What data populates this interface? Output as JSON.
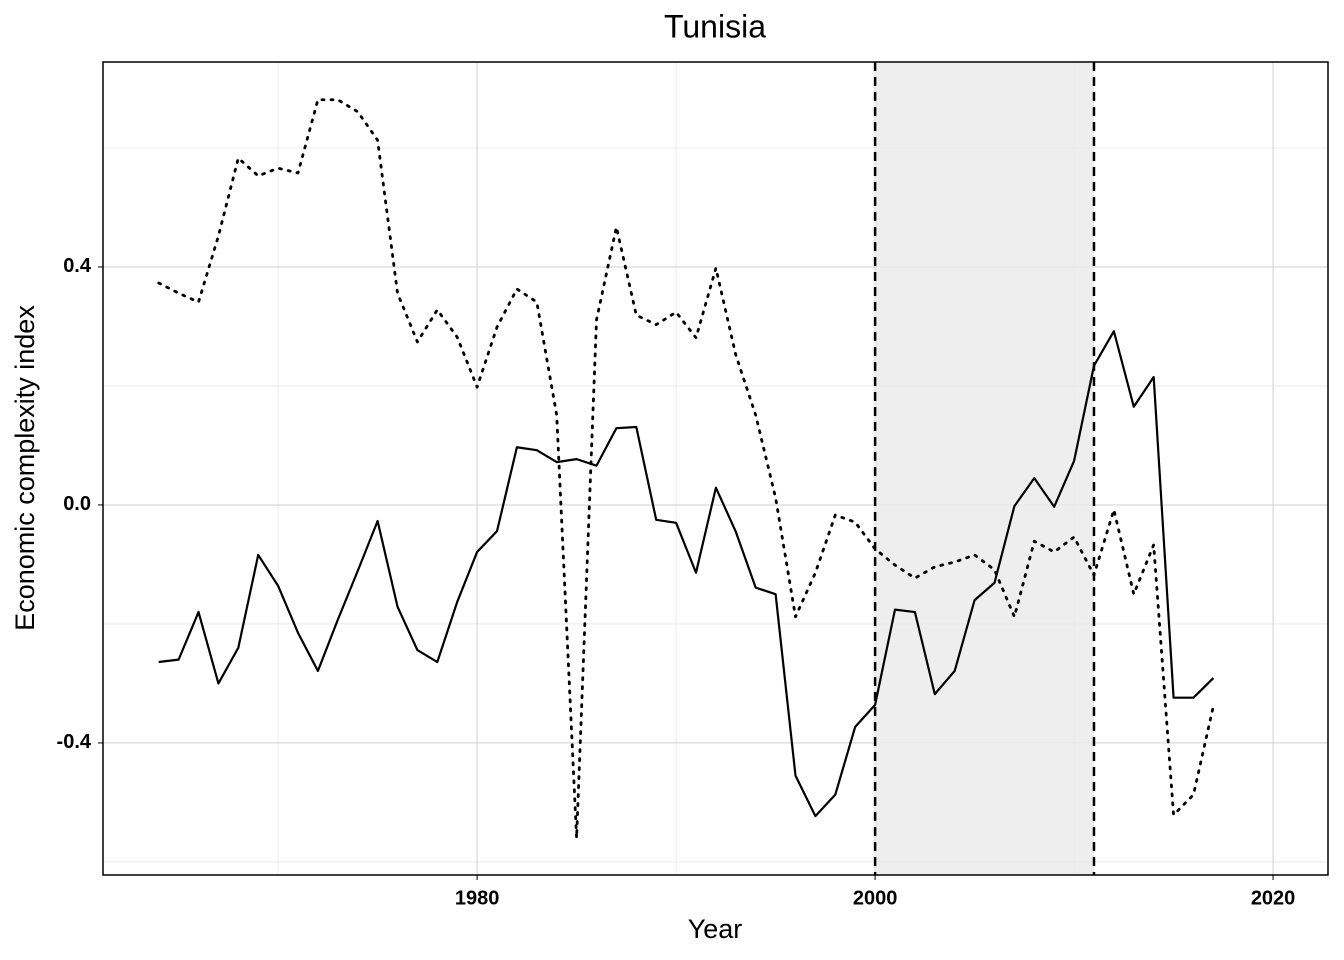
{
  "chart_data": {
    "type": "line",
    "title": "Tunisia",
    "x_label": "Year",
    "y_label": "Economic complexity index",
    "x": [
      1964,
      1965,
      1966,
      1967,
      1968,
      1969,
      1970,
      1971,
      1972,
      1973,
      1974,
      1975,
      1976,
      1977,
      1978,
      1979,
      1980,
      1981,
      1982,
      1983,
      1984,
      1985,
      1986,
      1987,
      1988,
      1989,
      1990,
      1991,
      1992,
      1993,
      1994,
      1995,
      1996,
      1997,
      1998,
      1999,
      2000,
      2001,
      2002,
      2003,
      2004,
      2005,
      2006,
      2007,
      2008,
      2009,
      2010,
      2011,
      2012,
      2013,
      2014,
      2015,
      2016,
      2017
    ],
    "series": [
      {
        "color": "#000000",
        "style": "solid",
        "values": [
          -0.264,
          -0.26,
          -0.18,
          -0.3,
          -0.24,
          -0.084,
          -0.136,
          -0.215,
          -0.279,
          -0.193,
          -0.111,
          -0.027,
          -0.171,
          -0.244,
          -0.264,
          -0.163,
          -0.079,
          -0.044,
          0.097,
          0.092,
          0.072,
          0.077,
          0.066,
          0.129,
          0.131,
          -0.025,
          -0.03,
          -0.114,
          0.029,
          -0.045,
          -0.139,
          -0.15,
          -0.455,
          -0.523,
          -0.487,
          -0.373,
          -0.336,
          -0.176,
          -0.18,
          -0.318,
          -0.279,
          -0.16,
          -0.131,
          -0.002,
          0.045,
          -0.003,
          0.074,
          0.234,
          0.292,
          0.165,
          0.215,
          -0.324,
          -0.324,
          -0.291
        ]
      },
      {
        "color": "#000000",
        "style": "dotted",
        "values": [
          0.373,
          0.356,
          0.341,
          0.452,
          0.583,
          0.553,
          0.566,
          0.558,
          0.681,
          0.681,
          0.661,
          0.613,
          0.356,
          0.274,
          0.328,
          0.282,
          0.198,
          0.299,
          0.363,
          0.341,
          0.151,
          -0.56,
          0.311,
          0.467,
          0.319,
          0.303,
          0.324,
          0.281,
          0.398,
          0.252,
          0.151,
          0.012,
          -0.188,
          -0.114,
          -0.017,
          -0.029,
          -0.074,
          -0.101,
          -0.123,
          -0.104,
          -0.096,
          -0.084,
          -0.109,
          -0.188,
          -0.061,
          -0.079,
          -0.054,
          -0.118,
          -0.008,
          -0.15,
          -0.067,
          -0.521,
          -0.487,
          -0.338
        ]
      }
    ],
    "shaded_region": [
      2000,
      2011
    ],
    "shade_color": "#ebebeb",
    "vlines": [
      2000,
      2011
    ],
    "xlim": [
      1961.2,
      2022.76
    ],
    "ylim": [
      -0.622,
      0.7445
    ],
    "xticks": [
      1980,
      2000,
      2020
    ],
    "yticks": [
      {
        "value": 0.4,
        "label": "0.4"
      },
      {
        "value": 0,
        "label": "0.0"
      },
      {
        "value": -0.4,
        "label": "-0.4"
      }
    ],
    "x_minor_grid": [
      1970,
      1990,
      2010
    ],
    "y_minor_grid": [
      0.6,
      0.2,
      -0.2,
      -0.6
    ],
    "grid": true
  }
}
